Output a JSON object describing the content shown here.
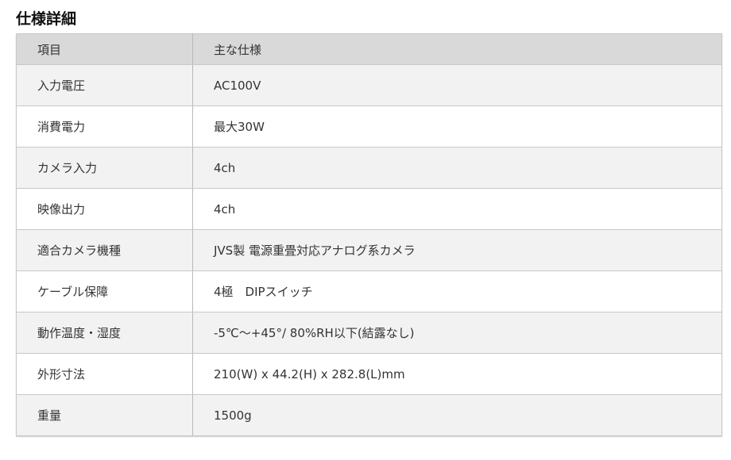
{
  "title": "仕様詳細",
  "header": [
    "項目",
    "主な仕様"
  ],
  "rows": [
    [
      "入力電圧",
      "AC100V"
    ],
    [
      "消費電力",
      "最大30W"
    ],
    [
      "カメラ入力",
      "4ch"
    ],
    [
      "映像出力",
      "4ch"
    ],
    [
      "適合カメラ機種",
      "JVS製 電源重畳対応アナログ系カメラ"
    ],
    [
      "ケーブル保障",
      "4極　DIPスイッチ"
    ],
    [
      "動作温度・湿度",
      "-5℃～+45°/ 80%RH以下(結露なし)"
    ],
    [
      "外形寸法",
      "210(W) x 44.2(H) x 282.8(L)mm"
    ],
    [
      "重量",
      "1500g"
    ]
  ]
}
